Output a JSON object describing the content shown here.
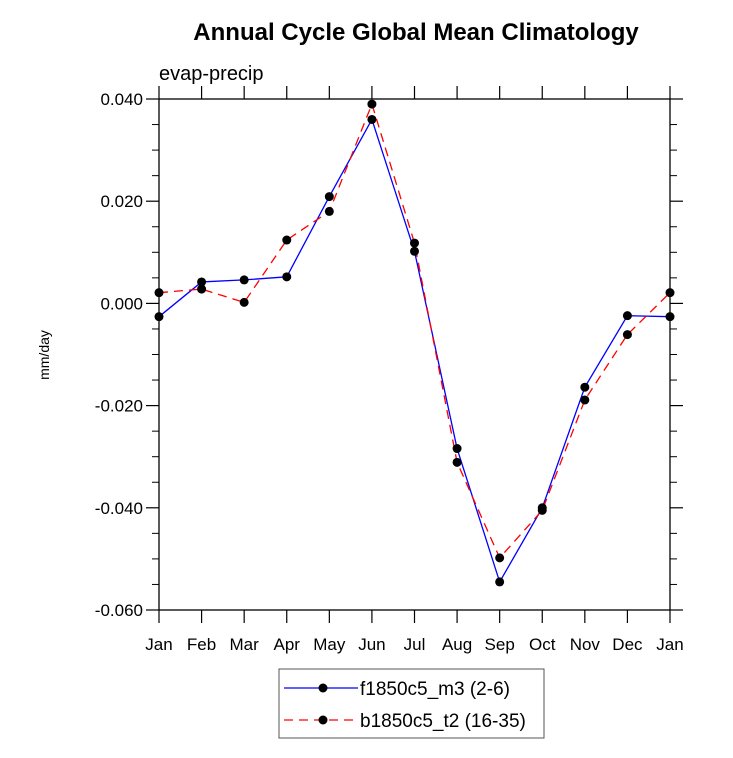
{
  "chart_data": {
    "type": "line",
    "title": "Annual Cycle Global Mean Climatology",
    "subtitle": "evap-precip",
    "xlabel": "",
    "ylabel": "mm/day",
    "categories": [
      "Jan",
      "Feb",
      "Mar",
      "Apr",
      "May",
      "Jun",
      "Jul",
      "Aug",
      "Sep",
      "Oct",
      "Nov",
      "Dec",
      "Jan"
    ],
    "ylim": [
      -0.06,
      0.04
    ],
    "yticks": [
      0.04,
      0.02,
      0.0,
      -0.02,
      -0.04,
      -0.06
    ],
    "ytick_labels": [
      "0.040",
      "0.020",
      "0.000",
      "-0.020",
      "-0.040",
      "-0.060"
    ],
    "yminor_step": 0.005,
    "grid": false,
    "legend_position": "bottom-center",
    "series": [
      {
        "name": "f1850c5_m3 (2-6)",
        "color": "#0000ff",
        "line_style": "solid",
        "marker": "filled-circle",
        "marker_color": "#000000",
        "values": [
          -0.0026,
          0.0042,
          0.0046,
          0.0052,
          0.0209,
          0.036,
          0.0102,
          -0.0284,
          -0.0545,
          -0.04,
          -0.0164,
          -0.0024,
          -0.0026
        ]
      },
      {
        "name": "b1850c5_t2 (16-35)",
        "color": "#ff0000",
        "line_style": "dashed",
        "marker": "filled-circle",
        "marker_color": "#000000",
        "values": [
          0.0021,
          0.0028,
          0.0002,
          0.0124,
          0.018,
          0.039,
          0.0118,
          -0.0311,
          -0.0498,
          -0.0405,
          -0.0189,
          -0.0061,
          0.0021
        ]
      }
    ]
  }
}
